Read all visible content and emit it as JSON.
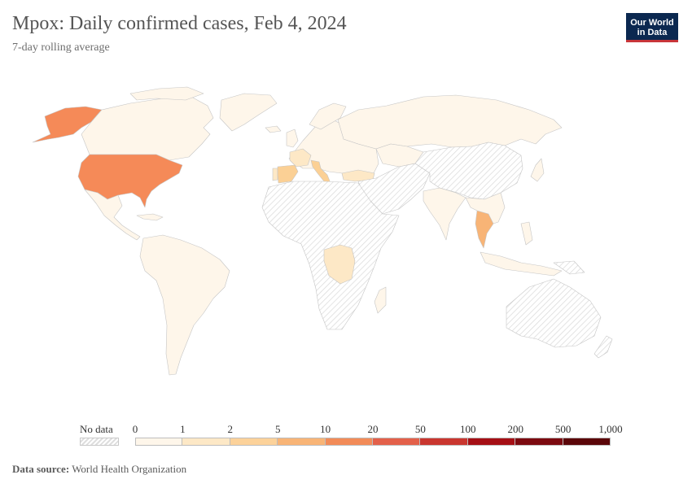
{
  "header": {
    "title": "Mpox: Daily confirmed cases, Feb 4, 2024",
    "subtitle": "7-day rolling average"
  },
  "logo": {
    "line1": "Our World",
    "line2": "in Data"
  },
  "legend": {
    "no_data_label": "No data",
    "ticks": [
      "0",
      "1",
      "2",
      "5",
      "10",
      "20",
      "50",
      "100",
      "200",
      "500",
      "1,000"
    ],
    "bin_colors": [
      "#fef6ea",
      "#fde8c6",
      "#fcd29a",
      "#f8b476",
      "#f28b58",
      "#e3604a",
      "#c9362f",
      "#a50f15",
      "#7c0a10",
      "#5b0609"
    ]
  },
  "map_data": {
    "metric": "Daily confirmed cases (7-day rolling average)",
    "regions": [
      {
        "name": "United States",
        "bin": "10–20"
      },
      {
        "name": "Alaska (United States)",
        "bin": "10–20"
      },
      {
        "name": "Canada",
        "bin": "0–1"
      },
      {
        "name": "Mexico",
        "bin": "0–1"
      },
      {
        "name": "South America",
        "bin": "0–1"
      },
      {
        "name": "Spain",
        "bin": "2–5"
      },
      {
        "name": "Italy",
        "bin": "2–5"
      },
      {
        "name": "Portugal",
        "bin": "1–2"
      },
      {
        "name": "France",
        "bin": "1–2"
      },
      {
        "name": "Thailand",
        "bin": "5–10"
      },
      {
        "name": "Democratic Republic of Congo",
        "bin": "1–2"
      },
      {
        "name": "Russia",
        "bin": "0–1"
      },
      {
        "name": "India",
        "bin": "0–1"
      },
      {
        "name": "Turkey",
        "bin": "0–1"
      },
      {
        "name": "Indonesia",
        "bin": "0–1"
      },
      {
        "name": "Japan",
        "bin": "0–1"
      },
      {
        "name": "Greenland",
        "bin": "0–1"
      },
      {
        "name": "China",
        "bin": "No data"
      },
      {
        "name": "Africa (most)",
        "bin": "No data"
      },
      {
        "name": "Australia",
        "bin": "No data"
      }
    ]
  },
  "footer": {
    "source_label": "Data source:",
    "source_value": "World Health Organization"
  },
  "colors": {
    "pale": "#fef6ea",
    "light": "#fde8c6",
    "mid": "#fbd095",
    "orange": "#f8b476",
    "us": "#f58a58",
    "ocean": "#ffffff",
    "border": "#c5c5c5",
    "nodata_stripe": "#d8d8d8"
  }
}
